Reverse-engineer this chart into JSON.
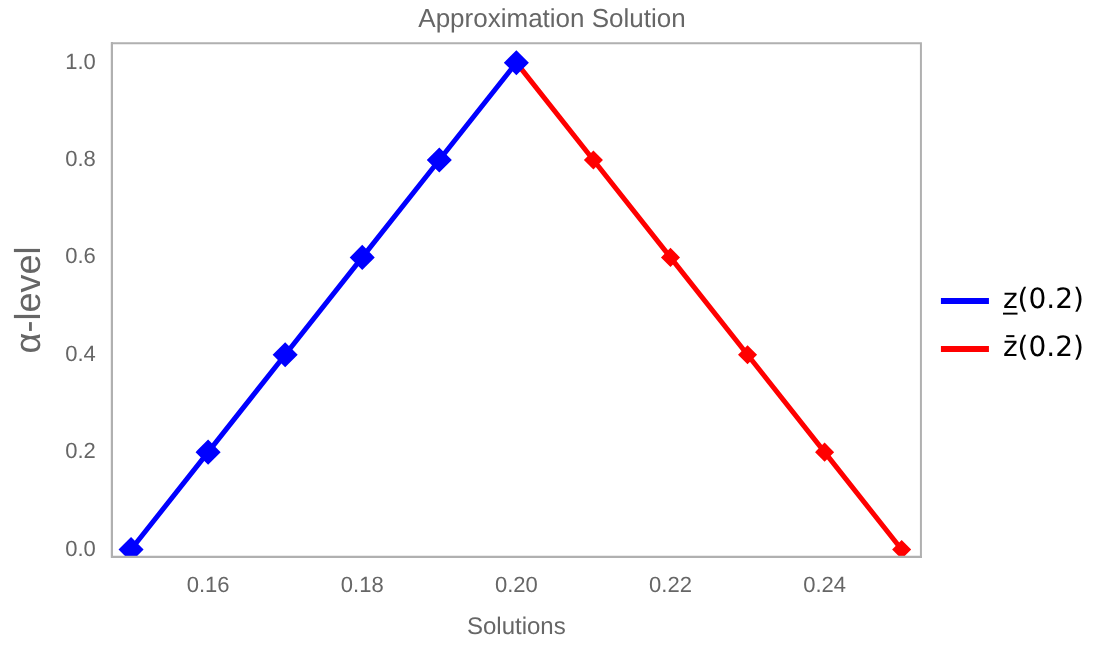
{
  "chart_data": {
    "type": "line",
    "title": "Approximation Solution",
    "xlabel": "Solutions",
    "ylabel": "α-level",
    "series": [
      {
        "name": "z̲(0.2)",
        "color": "#0000ff",
        "x": [
          0.15,
          0.16,
          0.17,
          0.18,
          0.19,
          0.2
        ],
        "values": [
          0,
          0.2,
          0.4,
          0.6,
          0.8,
          1
        ]
      },
      {
        "name": "z̄(0.2)",
        "color": "#ff0000",
        "x": [
          0.2,
          0.21,
          0.22,
          0.23,
          0.24,
          0.25
        ],
        "values": [
          1,
          0.8,
          0.6,
          0.4,
          0.2,
          0
        ]
      }
    ],
    "xlim": [
      0.1475,
      0.2525
    ],
    "xticks": [
      0.16,
      0.18,
      {
        "value": 0.2,
        "label": "0.20"
      },
      0.22,
      0.24
    ],
    "ylim": [
      -0.015,
      1.04
    ],
    "yticks": [
      {
        "value": 0,
        "label": "0.0"
      },
      0.2,
      0.4,
      0.6,
      0.8,
      {
        "value": 1,
        "label": "1.0"
      }
    ],
    "grid": false,
    "legend": "right",
    "marker": "diamond",
    "line_style": "solid"
  }
}
